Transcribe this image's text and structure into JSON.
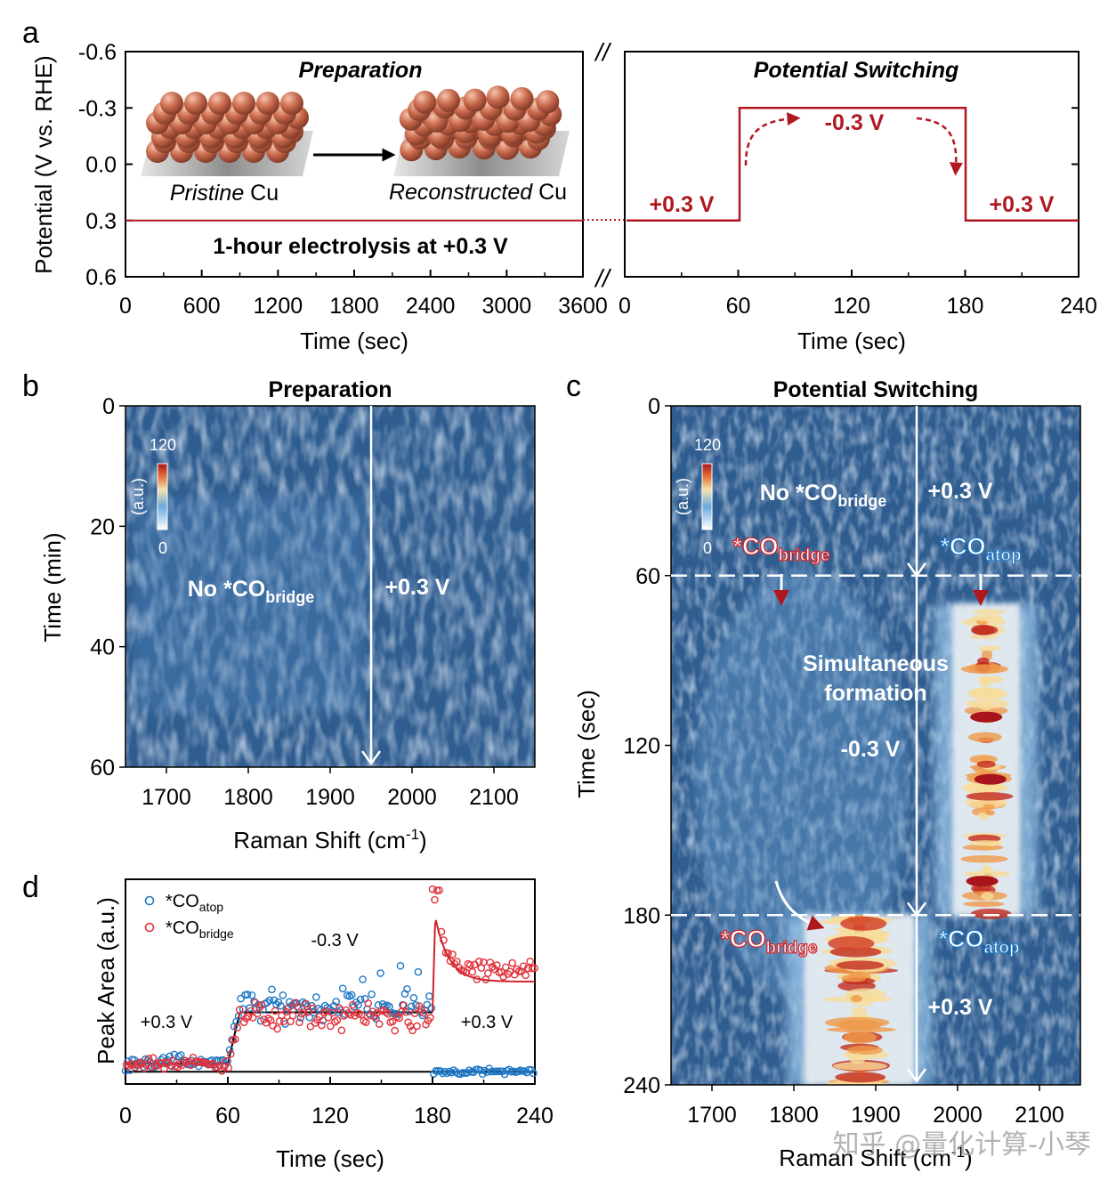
{
  "panel_letters": {
    "a": "a",
    "b": "b",
    "c": "c",
    "d": "d"
  },
  "watermark": "知乎 @量化计算-小琴",
  "colors": {
    "red": "#b01820",
    "blue": "#1f77c4",
    "map_bg": "#2f5d90"
  },
  "chart_data": [
    {
      "id": "a-left",
      "type": "line",
      "title": "Preparation",
      "xlabel": "Time (sec)",
      "ylabel": "Potential (V vs. RHE)",
      "xlim": [
        0,
        3600
      ],
      "ylim": [
        -0.6,
        0.6
      ],
      "y_inverted": true,
      "x_ticks": [
        "0",
        "600",
        "1200",
        "1800",
        "2400",
        "3000",
        "3600"
      ],
      "y_ticks": [
        "-0.6",
        "-0.3",
        "0.0",
        "0.3",
        "0.6"
      ],
      "series": [
        {
          "name": "potential",
          "x": [
            0,
            3600
          ],
          "y": [
            0.3,
            0.3
          ]
        }
      ],
      "annotations": {
        "pristine_pre": "Pristine",
        "pristine_post": " Cu",
        "recon_pre": "Reconstructed",
        "recon_post": " Cu",
        "electrolysis": "1-hour electrolysis at +0.3 V"
      }
    },
    {
      "id": "a-right",
      "type": "line",
      "title": "Potential Switching",
      "xlabel": "Time (sec)",
      "xlim": [
        0,
        240
      ],
      "ylim": [
        -0.6,
        0.6
      ],
      "x_ticks": [
        "0",
        "60",
        "120",
        "180",
        "240"
      ],
      "break_mark": "//",
      "series": [
        {
          "name": "potential",
          "x": [
            0,
            60,
            60,
            180,
            180,
            240
          ],
          "y": [
            0.3,
            0.3,
            -0.3,
            -0.3,
            0.3,
            0.3
          ]
        }
      ],
      "annotations": {
        "left": "+0.3 V",
        "middle": "-0.3 V",
        "right": "+0.3 V"
      }
    },
    {
      "id": "b",
      "type": "heatmap",
      "title": "Preparation",
      "xlabel_pre": "Raman Shift (cm",
      "xlabel_sup": "-1",
      "xlabel_post": ")",
      "ylabel": "Time (min)",
      "xlim": [
        1650,
        2150
      ],
      "ylim": [
        0,
        60
      ],
      "x_ticks": [
        "1700",
        "1800",
        "1900",
        "2000",
        "2100"
      ],
      "y_ticks": [
        "0",
        "20",
        "40",
        "60"
      ],
      "colorbar": {
        "max": "120",
        "min": "0",
        "unit": "(a.u.)"
      },
      "marker_x": 1950,
      "annotations": {
        "no_co_pre": "No *CO",
        "no_co_sub": "bridge",
        "potential": "+0.3 V"
      }
    },
    {
      "id": "c",
      "type": "heatmap",
      "title": "Potential Switching",
      "xlabel_pre": "Raman Shift (cm",
      "xlabel_sup": "-1",
      "xlabel_post": ")",
      "ylabel": "Time (sec)",
      "xlim": [
        1650,
        2150
      ],
      "ylim": [
        0,
        240
      ],
      "x_ticks": [
        "1700",
        "1800",
        "1900",
        "2000",
        "2100"
      ],
      "y_ticks": [
        "0",
        "60",
        "120",
        "180",
        "240"
      ],
      "colorbar": {
        "max": "120",
        "min": "0",
        "unit": "(a.u.)"
      },
      "marker_x": 1950,
      "switch_times": [
        60,
        180
      ],
      "bands": [
        {
          "name": "*CO bridge",
          "center": 1880,
          "t_start": 180,
          "t_end": 240
        },
        {
          "name": "*CO atop",
          "center": 2035,
          "t_start": 70,
          "t_end": 180
        }
      ],
      "annotations": {
        "no_co_pre": "No *CO",
        "no_co_sub": "bridge",
        "pos_top": "+0.3 V",
        "bridge_pre": "*CO",
        "bridge_sub": "bridge",
        "atop_pre": "*CO",
        "atop_sub": "atop",
        "simul_1": "Simultaneous",
        "simul_2": "formation",
        "neg": "-0.3 V",
        "bridge2_pre": "*CO",
        "bridge2_sub": "bridge",
        "atop2_pre": "*CO",
        "atop2_sub": "atop",
        "pos_bottom": "+0.3 V"
      }
    },
    {
      "id": "d",
      "type": "scatter",
      "xlabel": "Time (sec)",
      "ylabel": "Peak Area (a.u.)",
      "xlim": [
        0,
        240
      ],
      "ylim": [
        0,
        1
      ],
      "x_ticks": [
        "0",
        "60",
        "120",
        "180",
        "240"
      ],
      "legend": [
        {
          "pre": "*CO",
          "sub": "atop",
          "color": "#1f77c4"
        },
        {
          "pre": "*CO",
          "sub": "bridge",
          "color": "#e0323a"
        }
      ],
      "annotations": {
        "pos_left": "+0.3 V",
        "neg": "-0.3 V",
        "pos_right": "+0.3 V"
      },
      "baseline": 0.06,
      "fit_segments": [
        {
          "x": [
            0,
            60
          ],
          "y": 0.1
        },
        {
          "x": [
            60,
            67
          ],
          "y": [
            0.1,
            0.35
          ]
        },
        {
          "x": [
            67,
            180
          ],
          "y": 0.35
        }
      ],
      "series": [
        {
          "name": "*CO atop",
          "mean_neg": 0.38,
          "mean_pos_before": 0.11,
          "mean_pos_after": 0.06
        },
        {
          "name": "*CO bridge",
          "mean_neg": 0.33,
          "mean_pos_before": 0.1,
          "peak_after": 0.92,
          "decay_level": 0.55
        }
      ]
    }
  ]
}
